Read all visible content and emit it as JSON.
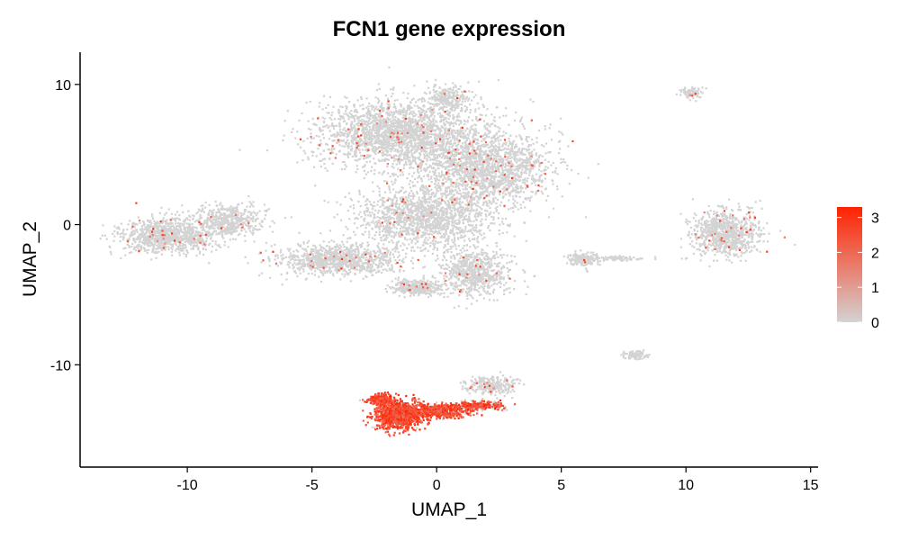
{
  "chart_data": {
    "type": "scatter",
    "title": "FCN1 gene expression",
    "xlabel": "UMAP_1",
    "ylabel": "UMAP_2",
    "xlim": [
      -14.3,
      15.3
    ],
    "ylim": [
      -17.3,
      12.3
    ],
    "xticks": [
      -10,
      -5,
      0,
      5,
      10,
      15
    ],
    "xtick_labels": [
      "-10",
      "-5",
      "0",
      "5",
      "10",
      "15"
    ],
    "yticks": [
      -10,
      0,
      10
    ],
    "ytick_labels": [
      "-10",
      "0",
      "10"
    ],
    "grid": false,
    "colorbar": {
      "min": 0,
      "max": 3.3,
      "ticks": [
        0,
        1,
        2,
        3
      ],
      "tick_labels": [
        "0",
        "1",
        "2",
        "3"
      ],
      "low_color": "#d3d3d3",
      "high_color": "#ff2200",
      "placement": "right"
    },
    "low_color": "#d3d3d3",
    "high_color": "#ff2200",
    "clusters": [
      {
        "center": [
          -1.5,
          6.5
        ],
        "spread": [
          3.0,
          2.2
        ],
        "n": 2200,
        "expression": 0.03
      },
      {
        "center": [
          2.0,
          4.0
        ],
        "spread": [
          2.3,
          2.4
        ],
        "n": 1700,
        "expression": 0.03
      },
      {
        "center": [
          -0.5,
          0.5
        ],
        "spread": [
          2.5,
          2.0
        ],
        "n": 1500,
        "expression": 0.02
      },
      {
        "center": [
          0.5,
          9.0
        ],
        "spread": [
          0.8,
          0.8
        ],
        "n": 250,
        "expression": 0.03
      },
      {
        "center": [
          -4.0,
          -2.5
        ],
        "spread": [
          2.2,
          1.0
        ],
        "n": 1000,
        "expression": 0.03
      },
      {
        "center": [
          1.5,
          -3.5
        ],
        "spread": [
          1.3,
          1.5
        ],
        "n": 700,
        "expression": 0.02
      },
      {
        "center": [
          -0.8,
          -4.5
        ],
        "spread": [
          0.9,
          0.5
        ],
        "n": 350,
        "expression": 0.02
      },
      {
        "center": [
          -10.8,
          -0.8
        ],
        "spread": [
          1.7,
          1.1
        ],
        "n": 1000,
        "expression": 0.02
      },
      {
        "center": [
          -8.3,
          0.3
        ],
        "spread": [
          1.3,
          1.0
        ],
        "n": 500,
        "expression": 0.02
      },
      {
        "center": [
          11.6,
          -0.6
        ],
        "spread": [
          1.2,
          1.4
        ],
        "n": 850,
        "expression": 0.03
      },
      {
        "center": [
          10.2,
          9.4
        ],
        "spread": [
          0.35,
          0.35
        ],
        "n": 80,
        "expression": 0.03
      },
      {
        "center": [
          8.0,
          -9.3
        ],
        "spread": [
          0.4,
          0.3
        ],
        "n": 90,
        "expression": 0.0
      },
      {
        "center": [
          5.8,
          -2.5
        ],
        "spread": [
          0.6,
          0.5
        ],
        "n": 150,
        "expression": 0.02
      },
      {
        "center": [
          7.3,
          -2.4
        ],
        "spread": [
          1.0,
          0.15
        ],
        "n": 80,
        "expression": 0.0
      },
      {
        "center": [
          2.2,
          -11.5
        ],
        "spread": [
          0.9,
          0.6
        ],
        "n": 250,
        "expression": 0.05
      },
      {
        "center": [
          -1.5,
          -13.6
        ],
        "spread": [
          0.9,
          0.9
        ],
        "n": 1000,
        "expression": 0.98
      },
      {
        "center": [
          0.2,
          -13.3
        ],
        "spread": [
          1.0,
          0.45
        ],
        "n": 500,
        "expression": 0.96
      },
      {
        "center": [
          -2.2,
          -12.5
        ],
        "spread": [
          0.5,
          0.35
        ],
        "n": 250,
        "expression": 0.98
      },
      {
        "center": [
          1.7,
          -12.9
        ],
        "spread": [
          0.9,
          0.25
        ],
        "n": 300,
        "expression": 0.55
      }
    ]
  }
}
